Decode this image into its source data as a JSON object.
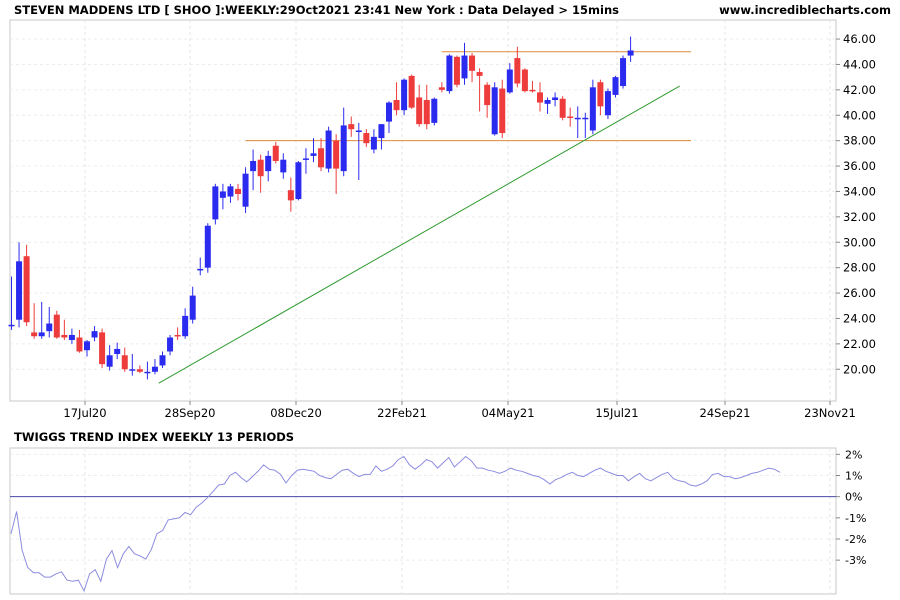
{
  "header": {
    "title": "STEVEN MADDENS LTD [ SHOO ]:WEEKLY:29Oct2021 23:41 New York : Data Delayed > 15mins",
    "source": "www.incrediblecharts.com"
  },
  "chart_data": [
    {
      "type": "candlestick",
      "title": "STEVEN MADDENS LTD [ SHOO ]:WEEKLY:29Oct2021 23:41 New York : Data Delayed > 15mins",
      "x_tick_labels": [
        "17Jul20",
        "28Sep20",
        "08Dec20",
        "22Feb21",
        "04May21",
        "15Jul21",
        "24Sep21",
        "23Nov21"
      ],
      "y_tick_labels": [
        "20.00",
        "22.00",
        "24.00",
        "26.00",
        "28.00",
        "30.00",
        "32.00",
        "34.00",
        "36.00",
        "38.00",
        "40.00",
        "42.00",
        "44.00",
        "46.00"
      ],
      "ylim": [
        17.5,
        47.5
      ],
      "colors": {
        "up": "#2b2bf0",
        "down": "#ee3b3b",
        "support_resistance": "#e08a3c",
        "trendline": "#2e9a2e"
      },
      "candles": [
        {
          "o": 23.4,
          "h": 27.3,
          "l": 23.1,
          "c": 23.5
        },
        {
          "o": 23.9,
          "h": 30.0,
          "l": 23.3,
          "c": 28.5
        },
        {
          "o": 28.9,
          "h": 29.8,
          "l": 23.4,
          "c": 23.7
        },
        {
          "o": 22.9,
          "h": 25.2,
          "l": 22.4,
          "c": 22.6
        },
        {
          "o": 22.6,
          "h": 25.3,
          "l": 22.4,
          "c": 22.9
        },
        {
          "o": 23.0,
          "h": 24.9,
          "l": 22.5,
          "c": 23.6
        },
        {
          "o": 24.3,
          "h": 24.6,
          "l": 22.4,
          "c": 22.5
        },
        {
          "o": 22.7,
          "h": 23.9,
          "l": 22.3,
          "c": 22.5
        },
        {
          "o": 22.3,
          "h": 23.2,
          "l": 22.0,
          "c": 22.7
        },
        {
          "o": 22.5,
          "h": 23.1,
          "l": 21.3,
          "c": 21.4
        },
        {
          "o": 21.5,
          "h": 22.3,
          "l": 21.0,
          "c": 22.2
        },
        {
          "o": 22.5,
          "h": 23.4,
          "l": 22.2,
          "c": 23.0
        },
        {
          "o": 22.9,
          "h": 23.2,
          "l": 20.1,
          "c": 20.4
        },
        {
          "o": 20.2,
          "h": 21.9,
          "l": 19.9,
          "c": 21.1
        },
        {
          "o": 21.2,
          "h": 22.1,
          "l": 20.8,
          "c": 21.6
        },
        {
          "o": 21.1,
          "h": 21.7,
          "l": 19.8,
          "c": 20.0
        },
        {
          "o": 19.9,
          "h": 21.2,
          "l": 19.5,
          "c": 20.0
        },
        {
          "o": 20.0,
          "h": 20.3,
          "l": 19.7,
          "c": 19.8
        },
        {
          "o": 19.7,
          "h": 20.6,
          "l": 19.2,
          "c": 19.8
        },
        {
          "o": 19.8,
          "h": 20.8,
          "l": 19.6,
          "c": 20.2
        },
        {
          "o": 20.3,
          "h": 21.4,
          "l": 20.1,
          "c": 21.1
        },
        {
          "o": 21.4,
          "h": 22.7,
          "l": 21.1,
          "c": 22.5
        },
        {
          "o": 22.7,
          "h": 23.3,
          "l": 22.3,
          "c": 22.6
        },
        {
          "o": 22.6,
          "h": 24.8,
          "l": 22.4,
          "c": 24.2
        },
        {
          "o": 23.9,
          "h": 26.5,
          "l": 23.6,
          "c": 25.8
        },
        {
          "o": 27.9,
          "h": 28.8,
          "l": 27.4,
          "c": 27.9
        },
        {
          "o": 28.0,
          "h": 31.5,
          "l": 27.6,
          "c": 31.3
        },
        {
          "o": 31.8,
          "h": 34.6,
          "l": 31.4,
          "c": 34.4
        },
        {
          "o": 33.5,
          "h": 34.6,
          "l": 32.6,
          "c": 34.0
        },
        {
          "o": 33.6,
          "h": 34.6,
          "l": 33.1,
          "c": 34.4
        },
        {
          "o": 34.2,
          "h": 34.6,
          "l": 33.3,
          "c": 33.8
        },
        {
          "o": 32.8,
          "h": 35.9,
          "l": 32.3,
          "c": 35.4
        },
        {
          "o": 35.6,
          "h": 37.3,
          "l": 34.1,
          "c": 36.4
        },
        {
          "o": 36.5,
          "h": 36.9,
          "l": 33.9,
          "c": 35.2
        },
        {
          "o": 35.6,
          "h": 37.2,
          "l": 34.8,
          "c": 36.8
        },
        {
          "o": 37.6,
          "h": 37.9,
          "l": 36.2,
          "c": 36.4
        },
        {
          "o": 35.5,
          "h": 37.0,
          "l": 35.0,
          "c": 36.5
        },
        {
          "o": 34.1,
          "h": 35.1,
          "l": 32.4,
          "c": 33.3
        },
        {
          "o": 33.4,
          "h": 36.4,
          "l": 33.3,
          "c": 36.3
        },
        {
          "o": 36.6,
          "h": 37.4,
          "l": 35.4,
          "c": 36.6
        },
        {
          "o": 36.8,
          "h": 38.2,
          "l": 36.3,
          "c": 37.0
        },
        {
          "o": 37.4,
          "h": 38.2,
          "l": 35.6,
          "c": 35.9
        },
        {
          "o": 35.8,
          "h": 39.1,
          "l": 35.5,
          "c": 38.8
        },
        {
          "o": 38.0,
          "h": 38.5,
          "l": 33.8,
          "c": 35.8
        },
        {
          "o": 35.6,
          "h": 40.6,
          "l": 35.2,
          "c": 39.2
        },
        {
          "o": 39.3,
          "h": 39.9,
          "l": 38.3,
          "c": 38.9
        },
        {
          "o": 38.7,
          "h": 39.4,
          "l": 34.9,
          "c": 38.8
        },
        {
          "o": 38.6,
          "h": 38.9,
          "l": 37.5,
          "c": 37.8
        },
        {
          "o": 37.3,
          "h": 38.9,
          "l": 37.0,
          "c": 38.3
        },
        {
          "o": 38.2,
          "h": 39.3,
          "l": 37.3,
          "c": 39.3
        },
        {
          "o": 39.5,
          "h": 41.1,
          "l": 38.6,
          "c": 41.0
        },
        {
          "o": 41.2,
          "h": 42.6,
          "l": 40.0,
          "c": 40.4
        },
        {
          "o": 40.4,
          "h": 42.9,
          "l": 40.0,
          "c": 42.8
        },
        {
          "o": 43.1,
          "h": 43.2,
          "l": 40.5,
          "c": 40.6
        },
        {
          "o": 41.4,
          "h": 42.4,
          "l": 39.1,
          "c": 39.3
        },
        {
          "o": 41.2,
          "h": 42.4,
          "l": 38.9,
          "c": 39.3
        },
        {
          "o": 39.4,
          "h": 41.4,
          "l": 39.2,
          "c": 41.3
        },
        {
          "o": 42.2,
          "h": 42.6,
          "l": 41.8,
          "c": 42.0
        },
        {
          "o": 41.9,
          "h": 44.8,
          "l": 41.7,
          "c": 44.7
        },
        {
          "o": 44.6,
          "h": 44.7,
          "l": 42.2,
          "c": 42.4
        },
        {
          "o": 42.9,
          "h": 45.7,
          "l": 42.4,
          "c": 44.7
        },
        {
          "o": 44.7,
          "h": 44.9,
          "l": 42.6,
          "c": 43.5
        },
        {
          "o": 43.4,
          "h": 43.7,
          "l": 40.3,
          "c": 43.1
        },
        {
          "o": 42.4,
          "h": 42.6,
          "l": 39.8,
          "c": 40.8
        },
        {
          "o": 38.5,
          "h": 42.6,
          "l": 38.4,
          "c": 42.2
        },
        {
          "o": 42.1,
          "h": 42.8,
          "l": 38.2,
          "c": 38.6
        },
        {
          "o": 41.8,
          "h": 44.1,
          "l": 41.7,
          "c": 43.6
        },
        {
          "o": 44.5,
          "h": 45.4,
          "l": 42.2,
          "c": 42.5
        },
        {
          "o": 43.6,
          "h": 43.7,
          "l": 41.8,
          "c": 41.9
        },
        {
          "o": 42.0,
          "h": 42.7,
          "l": 41.8,
          "c": 41.9
        },
        {
          "o": 41.8,
          "h": 42.6,
          "l": 40.3,
          "c": 41.0
        },
        {
          "o": 40.9,
          "h": 41.4,
          "l": 40.1,
          "c": 41.2
        },
        {
          "o": 41.2,
          "h": 41.8,
          "l": 40.7,
          "c": 41.4
        },
        {
          "o": 41.3,
          "h": 41.5,
          "l": 39.6,
          "c": 39.8
        },
        {
          "o": 39.9,
          "h": 40.6,
          "l": 39.1,
          "c": 39.8
        },
        {
          "o": 39.8,
          "h": 40.7,
          "l": 38.2,
          "c": 39.8
        },
        {
          "o": 39.8,
          "h": 40.2,
          "l": 38.2,
          "c": 39.8
        },
        {
          "o": 38.8,
          "h": 42.8,
          "l": 38.5,
          "c": 42.2
        },
        {
          "o": 42.6,
          "h": 42.8,
          "l": 40.0,
          "c": 40.7
        },
        {
          "o": 40.0,
          "h": 42.1,
          "l": 39.7,
          "c": 41.9
        },
        {
          "o": 41.6,
          "h": 43.1,
          "l": 41.4,
          "c": 43.0
        },
        {
          "o": 42.3,
          "h": 44.7,
          "l": 42.1,
          "c": 44.5
        },
        {
          "o": 44.7,
          "h": 46.2,
          "l": 44.2,
          "c": 45.1
        }
      ],
      "support_resistance_levels": [
        {
          "value": 45.0,
          "from_index": 57,
          "to_index": 90
        },
        {
          "value": 38.0,
          "from_index": 31,
          "to_index": 90
        }
      ],
      "trendline": {
        "from_index": 19.5,
        "from_value": 18.9,
        "to_index": 88.5,
        "to_value": 42.3
      }
    },
    {
      "type": "line",
      "title": "TWIGGS TREND INDEX WEEKLY 13 PERIODS",
      "y_tick_labels": [
        "2%",
        "1%",
        "0%",
        "-1%",
        "-2%",
        "-3%"
      ],
      "ylim": [
        -4.6,
        2.3
      ],
      "zero_line": true,
      "colors": {
        "line": "#8c8ce0",
        "zero_line": "#4a4aa8"
      },
      "values": [
        -1.75,
        -0.7,
        -2.55,
        -3.35,
        -3.6,
        -3.6,
        -3.8,
        -3.8,
        -3.65,
        -3.55,
        -3.95,
        -4.0,
        -3.95,
        -4.45,
        -3.65,
        -3.45,
        -4.0,
        -2.95,
        -2.55,
        -3.35,
        -2.7,
        -2.35,
        -2.7,
        -2.8,
        -2.95,
        -2.5,
        -1.75,
        -1.6,
        -1.1,
        -1.05,
        -1.0,
        -0.75,
        -0.85,
        -0.5,
        -0.3,
        -0.05,
        0.25,
        0.55,
        0.6,
        1.0,
        1.15,
        0.9,
        0.7,
        0.95,
        1.2,
        1.5,
        1.3,
        1.25,
        1.05,
        0.65,
        1.0,
        1.25,
        1.3,
        1.25,
        1.2,
        1.0,
        0.9,
        0.85,
        1.05,
        1.25,
        1.3,
        1.1,
        0.95,
        1.05,
        1.05,
        1.45,
        1.2,
        1.3,
        1.45,
        1.75,
        1.9,
        1.5,
        1.3,
        1.5,
        1.75,
        1.65,
        1.35,
        1.6,
        1.85,
        1.4,
        1.65,
        1.9,
        1.7,
        1.35,
        1.35,
        1.25,
        1.2,
        1.1,
        1.2,
        1.35,
        1.25,
        1.2,
        1.1,
        1.0,
        0.95,
        0.8,
        0.6,
        0.8,
        0.9,
        1.05,
        1.15,
        1.0,
        0.95,
        1.1,
        1.25,
        1.35,
        1.2,
        1.1,
        1.0,
        1.0,
        0.75,
        0.95,
        1.1,
        0.85,
        0.75,
        0.9,
        1.05,
        1.15,
        0.85,
        0.75,
        0.7,
        0.55,
        0.5,
        0.6,
        0.75,
        1.05,
        1.1,
        0.95,
        0.95,
        0.85,
        0.9,
        1.0,
        1.1,
        1.15,
        1.25,
        1.35,
        1.3,
        1.15
      ]
    }
  ]
}
